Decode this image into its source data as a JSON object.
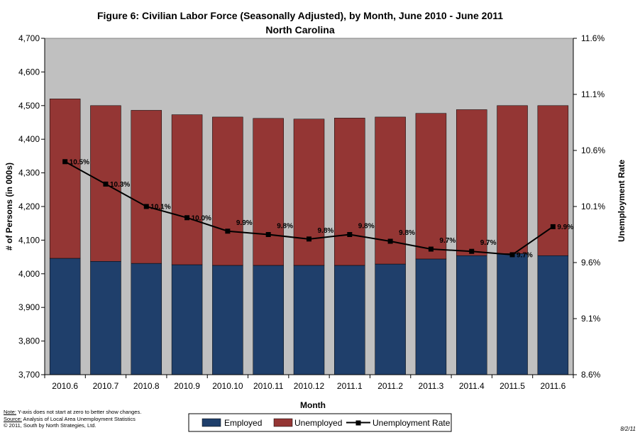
{
  "chart_data": {
    "type": "bar",
    "title": "Figure 6: Civilian Labor Force (Seasonally Adjusted), by Month, June 2010 - June 2011",
    "subtitle": "North Carolina",
    "xlabel": "Month",
    "ylabel": "# of Persons (in 000s)",
    "y2label": "Unemployment Rate",
    "categories": [
      "2010.6",
      "2010.7",
      "2010.8",
      "2010.9",
      "2010.10",
      "2010.11",
      "2010.12",
      "2011.1",
      "2011.2",
      "2011.3",
      "2011.4",
      "2011.5",
      "2011.6"
    ],
    "series": [
      {
        "name": "Employed",
        "type": "stacked-bar",
        "color": "#1F3F6B",
        "values": [
          4046,
          4037,
          4031,
          4027,
          4025,
          4025,
          4025,
          4025,
          4029,
          4044,
          4054,
          4060,
          4054
        ]
      },
      {
        "name": "Unemployed",
        "type": "stacked-bar",
        "color": "#943634",
        "values": [
          474,
          463,
          455,
          446,
          441,
          437,
          435,
          438,
          437,
          433,
          434,
          440,
          446
        ]
      },
      {
        "name": "Unemployment Rate",
        "type": "line",
        "color": "#000000",
        "axis": "right",
        "values": [
          10.5,
          10.3,
          10.1,
          10.0,
          9.88,
          9.85,
          9.81,
          9.85,
          9.79,
          9.72,
          9.7,
          9.67,
          9.92
        ],
        "labels": [
          "10.5%",
          "10.3%",
          "10.1%",
          "10.0%",
          "9.9%",
          "9.8%",
          "9.8%",
          "9.8%",
          "9.8%",
          "9.7%",
          "9.7%",
          "9.7%",
          "9.9%"
        ]
      }
    ],
    "ylim": [
      3700,
      4700
    ],
    "yticks": [
      "3,700",
      "3,800",
      "3,900",
      "4,000",
      "4,100",
      "4,200",
      "4,300",
      "4,400",
      "4,500",
      "4,600",
      "4,700"
    ],
    "y2lim": [
      8.6,
      11.6
    ],
    "y2ticks": [
      "8.6%",
      "9.1%",
      "9.6%",
      "10.1%",
      "10.6%",
      "11.1%",
      "11.6%"
    ],
    "grid": false,
    "plot_background": "#C0C0C0",
    "legend_position": "bottom"
  },
  "footnote": {
    "note_label": "Note:",
    "note_text": " Y-axis does not start at zero to better show changes.",
    "source_label": "Source:",
    "source_text": "  Analysis of  Local Area Unemployment Statistics",
    "copyright": "© 2011, South by North Strategies, Ltd."
  },
  "date_stamp": "8/2/11"
}
